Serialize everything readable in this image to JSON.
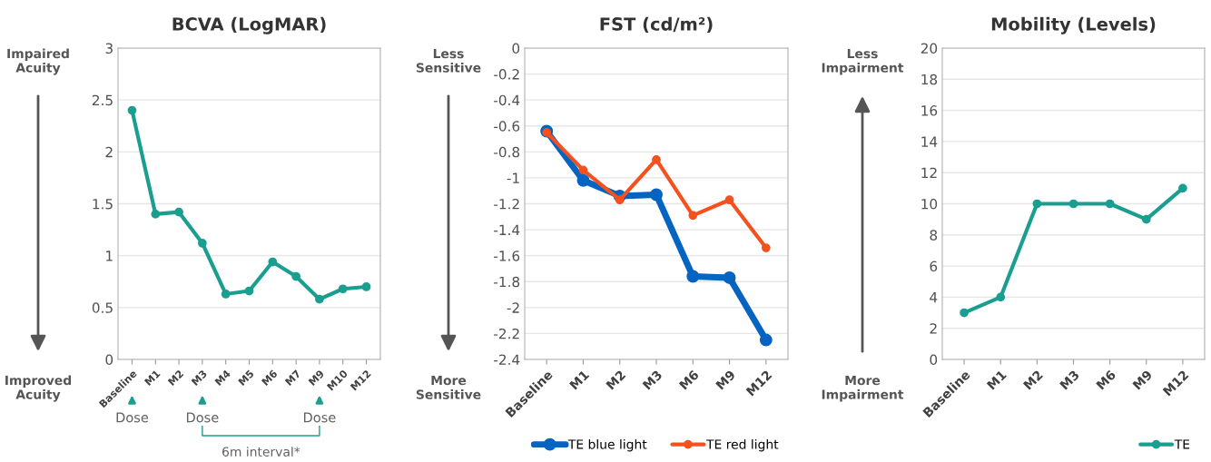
{
  "chart_data": [
    {
      "type": "line",
      "title": "BCVA (LogMAR)",
      "categories": [
        "Baseline",
        "M1",
        "M2",
        "M3",
        "M4",
        "M5",
        "M6",
        "M7",
        "M9",
        "M10",
        "M12"
      ],
      "series": [
        {
          "color": "#1a9e8f",
          "values": [
            2.4,
            1.4,
            1.42,
            1.12,
            0.63,
            0.66,
            0.94,
            0.8,
            0.58,
            0.68,
            0.7
          ]
        }
      ],
      "ylim": [
        0,
        3
      ],
      "yticks": [
        0,
        0.5,
        1,
        1.5,
        2,
        2.5,
        3
      ],
      "grid": "y",
      "marker": "circle",
      "line_style": "solid",
      "legend": false,
      "annotations": [
        "Impaired\nAcuity",
        "Improved\nAcuity",
        {
          "text": "Dose",
          "x": "Baseline"
        },
        {
          "text": "Dose",
          "x": "M3"
        },
        {
          "text": "Dose",
          "x": "M9"
        },
        "6m interval*"
      ]
    },
    {
      "type": "line",
      "title": "FST (cd/m²)",
      "categories": [
        "Baseline",
        "M1",
        "M2",
        "M3",
        "M6",
        "M9",
        "M12"
      ],
      "series": [
        {
          "name": "TE blue light",
          "color": "#0563c1",
          "values": [
            -0.64,
            -1.02,
            -1.14,
            -1.13,
            -1.76,
            -1.77,
            -2.25
          ]
        },
        {
          "name": "TE red light",
          "color": "#f4511e",
          "values": [
            -0.65,
            -0.94,
            -1.17,
            -0.86,
            -1.29,
            -1.17,
            -1.54
          ]
        }
      ],
      "ylim": [
        -2.4,
        0
      ],
      "yticks": [
        -2.4,
        -2.2,
        -2,
        -1.8,
        -1.6,
        -1.4,
        -1.2,
        -1,
        -0.8,
        -0.6,
        -0.4,
        -0.2,
        0
      ],
      "grid": "y",
      "marker": "circle",
      "line_style": "solid",
      "legend": "bottom",
      "annotations": [
        "Less\nSensitive",
        "More\nSensitive"
      ]
    },
    {
      "type": "line",
      "title": "Mobility (Levels)",
      "categories": [
        "Baseline",
        "M1",
        "M2",
        "M3",
        "M6",
        "M9",
        "M12"
      ],
      "series": [
        {
          "name": "TE",
          "color": "#1a9e8f",
          "values": [
            3,
            4,
            10,
            10,
            10,
            9,
            11
          ]
        }
      ],
      "ylim": [
        0,
        20
      ],
      "yticks": [
        0,
        2,
        4,
        6,
        8,
        10,
        12,
        14,
        16,
        18,
        20
      ],
      "grid": "y",
      "marker": "circle",
      "line_style": "solid",
      "legend": "bottom",
      "annotations": [
        "Less\nImpairment",
        "More\nImpairment"
      ]
    }
  ]
}
